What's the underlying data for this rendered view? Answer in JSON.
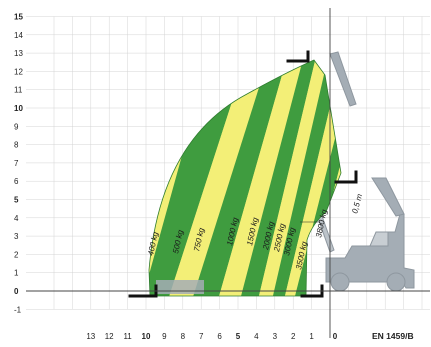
{
  "chart_data": {
    "type": "load-chart",
    "standard": "EN 1459/B",
    "ytick_labels": [
      "-1",
      "0",
      "1",
      "2",
      "3",
      "4",
      "5",
      "6",
      "7",
      "8",
      "9",
      "10",
      "11",
      "12",
      "13",
      "14",
      "15"
    ],
    "ytick_bold": [
      "0",
      "5",
      "10",
      "15"
    ],
    "xtick_labels": [
      "13",
      "12",
      "11",
      "10",
      "9",
      "8",
      "7",
      "6",
      "5",
      "4",
      "3",
      "2",
      "1",
      "0"
    ],
    "xtick_bold": [
      "10",
      "5",
      "0"
    ],
    "x_axis_direction": "reversed (outreach in m)",
    "y_axis": "height (m)",
    "xlim": [
      13,
      0
    ],
    "ylim": [
      -1,
      15
    ],
    "grid": true,
    "boom_extension_label": "0,5 m",
    "load_zones": [
      {
        "label": "400 kg",
        "color": "#3f9c3f"
      },
      {
        "label": "500 kg",
        "color": "#f3ef77"
      },
      {
        "label": "750 kg",
        "color": "#3f9c3f"
      },
      {
        "label": "1000 kg",
        "color": "#f3ef77"
      },
      {
        "label": "1500 kg",
        "color": "#3f9c3f"
      },
      {
        "label": "2000 kg",
        "color": "#f3ef77"
      },
      {
        "label": "2500 kg",
        "color": "#3f9c3f"
      },
      {
        "label": "3000 kg",
        "color": "#f3ef77"
      },
      {
        "label": "3500 kg",
        "color": "#3f9c3f"
      },
      {
        "label": "3800 kg",
        "color": "#f3ef77"
      }
    ],
    "colors": {
      "green": "#3f9c3f",
      "yellow": "#f3ef77",
      "grid": "#d4d4d4",
      "machine": "#a4adb5"
    }
  }
}
